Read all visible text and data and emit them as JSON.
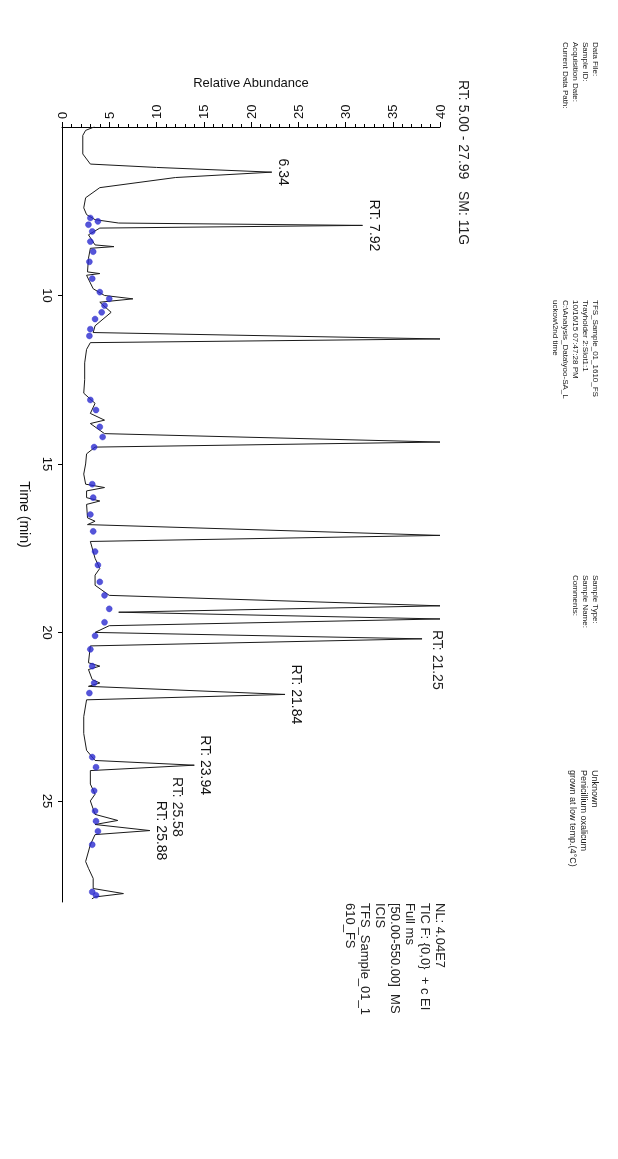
{
  "chart_data": {
    "type": "line",
    "xlabel": "Relative Abundance",
    "ylabel": "Time (min)",
    "xlim": [
      0,
      40
    ],
    "xticks": [
      0,
      5,
      10,
      15,
      20,
      25,
      30,
      35,
      40
    ],
    "ylim": [
      28,
      5
    ],
    "yticks": [
      10,
      15,
      20,
      25
    ],
    "grid": false,
    "series": [
      {
        "color": "#1a1a1a",
        "line_style": "solid",
        "marker": "none",
        "x": [
          3.4,
          2.5,
          2.2,
          2.2,
          3,
          10,
          22.2,
          12,
          4,
          2.5,
          2.3,
          2.6,
          3.5,
          6,
          31.8,
          4,
          2.8,
          3.5,
          5.5,
          3,
          2.8,
          2.7,
          4,
          2.6,
          3.3,
          4.5,
          7.5,
          4,
          5.2,
          3.5,
          3.3,
          40,
          3,
          2.6,
          2.4,
          2.4,
          2.3,
          3.5,
          3,
          4.5,
          3,
          4.5,
          40,
          3.5,
          2.6,
          2.5,
          2.3,
          2.5,
          4.5,
          2.6,
          2.6,
          4,
          2.6,
          2.7,
          3.5,
          2.7,
          40,
          3,
          3.5,
          4,
          3.5,
          3.5,
          5,
          40,
          6,
          40,
          5,
          3.5,
          38.1,
          3,
          2.8,
          4,
          2.8,
          3.2,
          4,
          2.8,
          23.6,
          2.6,
          2.3,
          2.3,
          2.6,
          3.5,
          14,
          3,
          3,
          3.5,
          3,
          3.5,
          5.9,
          3.5,
          9.3,
          3.5,
          3,
          2.5,
          2.8,
          3.3,
          3.3,
          6.5,
          3.5,
          3.2
        ],
        "values": [
          5.0,
          5.1,
          5.25,
          5.8,
          6.1,
          6.2,
          6.34,
          6.5,
          6.8,
          7.1,
          7.4,
          7.6,
          7.75,
          7.85,
          7.92,
          8.0,
          8.2,
          8.5,
          8.55,
          8.6,
          8.9,
          9.3,
          9.35,
          9.4,
          9.8,
          10.0,
          10.1,
          10.2,
          10.5,
          10.9,
          11.1,
          11.29,
          11.4,
          11.6,
          12.0,
          12.5,
          12.9,
          13.2,
          13.5,
          13.7,
          13.8,
          14.1,
          14.35,
          14.5,
          14.7,
          15.0,
          15.3,
          15.6,
          15.7,
          15.8,
          16.0,
          16.1,
          16.2,
          16.6,
          16.7,
          16.8,
          17.12,
          17.3,
          17.8,
          18.1,
          18.3,
          18.6,
          18.9,
          19.21,
          19.4,
          19.6,
          19.8,
          20.0,
          20.19,
          20.4,
          20.9,
          21.0,
          21.1,
          21.4,
          21.5,
          21.6,
          21.84,
          22.0,
          22.5,
          23.0,
          23.5,
          23.8,
          23.94,
          24.1,
          24.5,
          24.8,
          25.0,
          25.4,
          25.58,
          25.7,
          25.88,
          26.0,
          26.3,
          26.8,
          27.0,
          27.3,
          27.6,
          27.75,
          27.85,
          27.9
        ]
      },
      {
        "type": "scatter",
        "color": "#2a2ad0",
        "marker": "circle",
        "x": [
          3,
          3.8,
          2.8,
          3.2,
          3,
          3.3,
          2.9,
          3.2,
          4,
          5,
          4.5,
          4.2,
          3.5,
          3,
          2.9,
          3,
          3.6,
          4,
          4.3,
          3.4,
          3.2,
          3.3,
          3,
          3.3,
          3.5,
          3.8,
          4,
          4.5,
          5,
          4.5,
          3.5,
          3,
          3.2,
          3.4,
          2.9,
          3.2,
          3.6,
          3.4,
          3.5,
          3.6,
          3.8,
          3.2,
          3.2,
          3.6
        ],
        "values": [
          7.7,
          7.8,
          7.9,
          8.1,
          8.4,
          8.7,
          9.0,
          9.5,
          9.9,
          10.1,
          10.3,
          10.5,
          10.7,
          11.0,
          11.2,
          13.1,
          13.4,
          13.9,
          14.2,
          14.5,
          15.6,
          16.0,
          16.5,
          17.0,
          17.6,
          18.0,
          18.5,
          18.9,
          19.3,
          19.7,
          20.1,
          20.5,
          21.0,
          21.5,
          21.8,
          23.7,
          24.0,
          24.7,
          25.3,
          25.6,
          25.9,
          26.3,
          27.7,
          27.8
        ]
      }
    ],
    "annotations": [
      "Data File:\nSample ID:\nAcquisition Date:\nCurrent Data Path:",
      "TFS_Sample_01_1610_FS\nTrayholder 2:Slot1:1\n10/16/15 07:47:28 PM\nC:\\Analysis_Data\\yoo-SA_L\nuckow\\2nd time",
      "Sample Type:\nSample Name:\nComments:",
      "Unknown\nPenicillium oxalicum\ngrown at low temp.(4°C)",
      "RT: 5.00 - 27.99   SM: 11G",
      "NL: 4.04E7\nTIC F: {0,0}  + c EI\nFull ms\n[50.00-550.00]  MS\nICIS\nTFS_Sample_01_1\n610_FS",
      "RT: 21.25",
      "RT: 25.58",
      {
        "text": "6.34",
        "x": 22.2,
        "y": 6.34
      },
      {
        "text": "RT: 7.92",
        "x": 31.8,
        "y": 7.92
      },
      {
        "text": "RT: 21.84",
        "x": 23.6,
        "y": 21.84
      },
      {
        "text": "RT: 23.94",
        "x": 14,
        "y": 23.94
      },
      {
        "text": "RT: 25.88",
        "x": 9.3,
        "y": 25.88
      }
    ]
  }
}
